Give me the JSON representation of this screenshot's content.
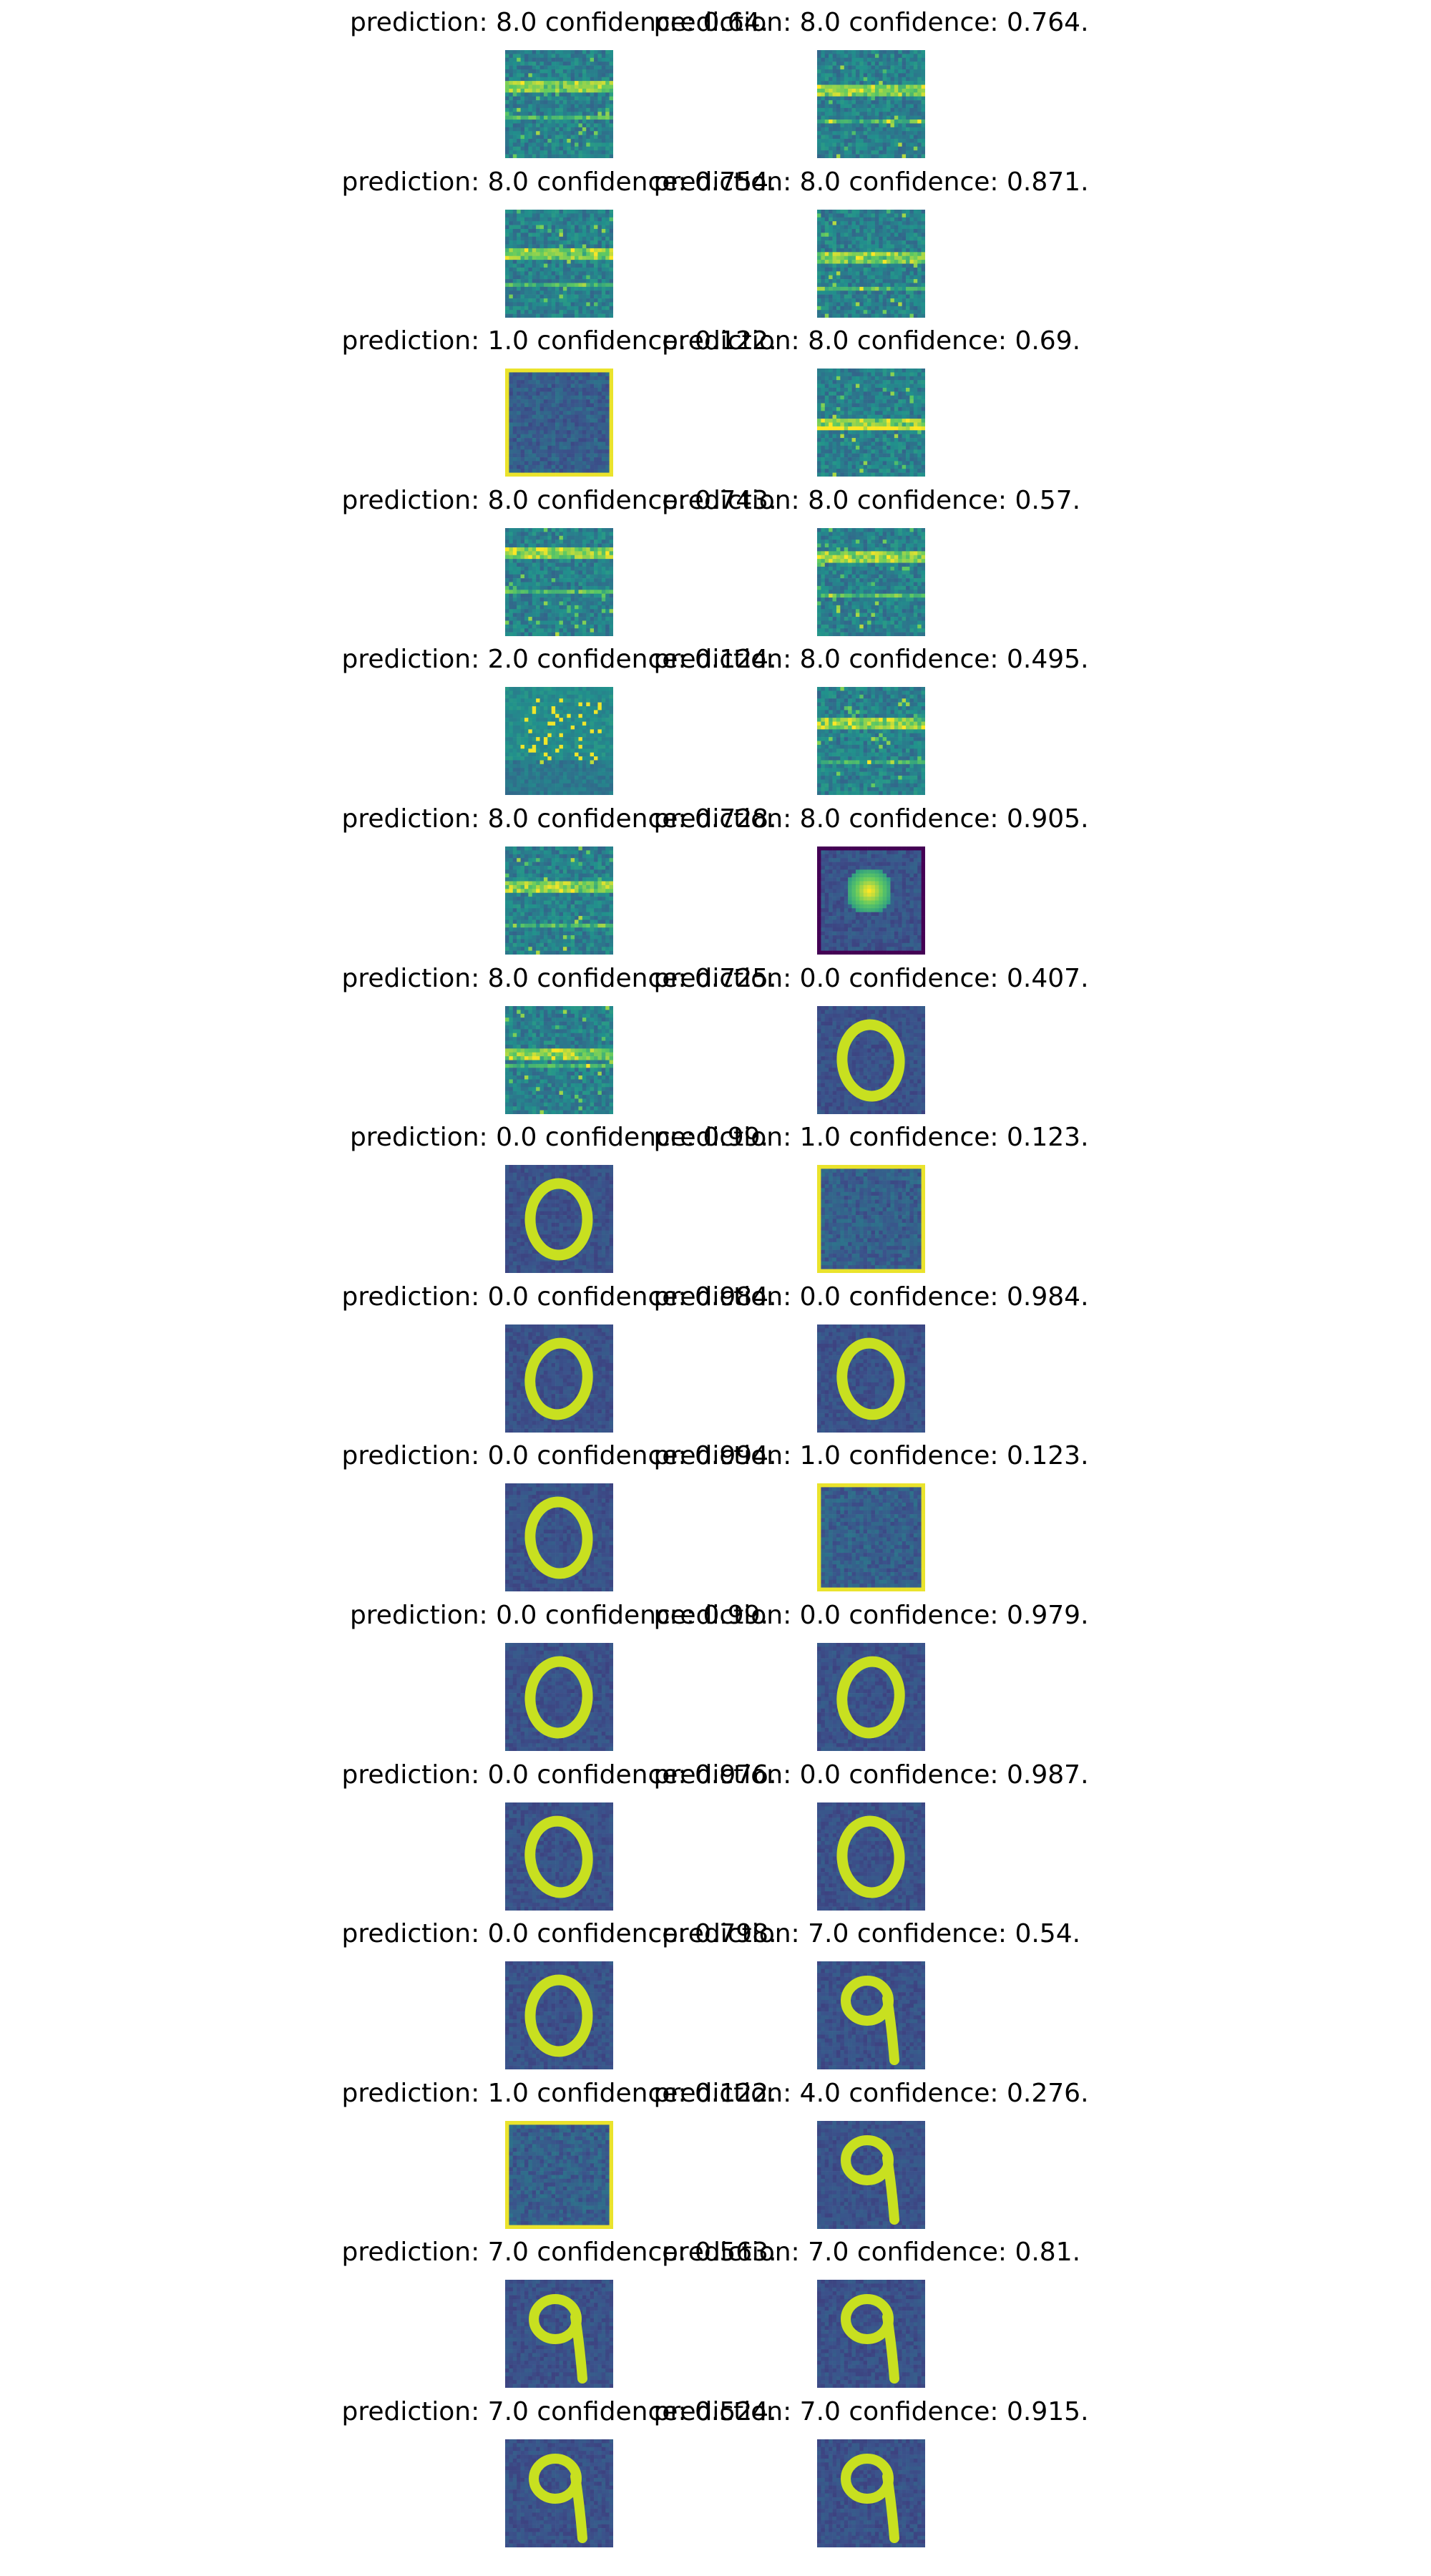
{
  "columns": 2,
  "colors": {
    "background": "#ffffff",
    "text": "#000000",
    "viridis_low": "#440154",
    "viridis_mid": "#31688e",
    "viridis_teal": "#21918c",
    "viridis_green": "#35b779",
    "viridis_high": "#fde725",
    "digit_stroke": "#c8e020"
  },
  "panels": [
    {
      "caption": "prediction: 8.0 confidence: 0.64.",
      "prediction": 8.0,
      "confidence": 0.64,
      "content": "texture"
    },
    {
      "caption": "prediction: 8.0 confidence: 0.764.",
      "prediction": 8.0,
      "confidence": 0.764,
      "content": "texture"
    },
    {
      "caption": "prediction: 8.0 confidence: 0.754.",
      "prediction": 8.0,
      "confidence": 0.754,
      "content": "texture"
    },
    {
      "caption": "prediction: 8.0 confidence: 0.871.",
      "prediction": 8.0,
      "confidence": 0.871,
      "content": "texture"
    },
    {
      "caption": "prediction: 1.0 confidence: 0.122.",
      "prediction": 1.0,
      "confidence": 0.122,
      "content": "bordered"
    },
    {
      "caption": "prediction: 8.0 confidence: 0.69.",
      "prediction": 8.0,
      "confidence": 0.69,
      "content": "texture"
    },
    {
      "caption": "prediction: 8.0 confidence: 0.743.",
      "prediction": 8.0,
      "confidence": 0.743,
      "content": "texture"
    },
    {
      "caption": "prediction: 8.0 confidence: 0.57.",
      "prediction": 8.0,
      "confidence": 0.57,
      "content": "texture"
    },
    {
      "caption": "prediction: 2.0 confidence: 0.124.",
      "prediction": 2.0,
      "confidence": 0.124,
      "content": "dots"
    },
    {
      "caption": "prediction: 8.0 confidence: 0.495.",
      "prediction": 8.0,
      "confidence": 0.495,
      "content": "texture"
    },
    {
      "caption": "prediction: 8.0 confidence: 0.728.",
      "prediction": 8.0,
      "confidence": 0.728,
      "content": "texture"
    },
    {
      "caption": "prediction: 8.0 confidence: 0.905.",
      "prediction": 8.0,
      "confidence": 0.905,
      "content": "blob"
    },
    {
      "caption": "prediction: 8.0 confidence: 0.725.",
      "prediction": 8.0,
      "confidence": 0.725,
      "content": "texture"
    },
    {
      "caption": "prediction: 0.0 confidence: 0.407.",
      "prediction": 0.0,
      "confidence": 0.407,
      "content": "digit-0"
    },
    {
      "caption": "prediction: 0.0 confidence: 0.99.",
      "prediction": 0.0,
      "confidence": 0.99,
      "content": "digit-0"
    },
    {
      "caption": "prediction: 1.0 confidence: 0.123.",
      "prediction": 1.0,
      "confidence": 0.123,
      "content": "bordered"
    },
    {
      "caption": "prediction: 0.0 confidence: 0.984.",
      "prediction": 0.0,
      "confidence": 0.984,
      "content": "digit-0"
    },
    {
      "caption": "prediction: 0.0 confidence: 0.984.",
      "prediction": 0.0,
      "confidence": 0.984,
      "content": "digit-0"
    },
    {
      "caption": "prediction: 0.0 confidence: 0.994.",
      "prediction": 0.0,
      "confidence": 0.994,
      "content": "digit-0"
    },
    {
      "caption": "prediction: 1.0 confidence: 0.123.",
      "prediction": 1.0,
      "confidence": 0.123,
      "content": "bordered"
    },
    {
      "caption": "prediction: 0.0 confidence: 0.99.",
      "prediction": 0.0,
      "confidence": 0.99,
      "content": "digit-0"
    },
    {
      "caption": "prediction: 0.0 confidence: 0.979.",
      "prediction": 0.0,
      "confidence": 0.979,
      "content": "digit-0"
    },
    {
      "caption": "prediction: 0.0 confidence: 0.976.",
      "prediction": 0.0,
      "confidence": 0.976,
      "content": "digit-0"
    },
    {
      "caption": "prediction: 0.0 confidence: 0.987.",
      "prediction": 0.0,
      "confidence": 0.987,
      "content": "digit-0"
    },
    {
      "caption": "prediction: 0.0 confidence: 0.798.",
      "prediction": 0.0,
      "confidence": 0.798,
      "content": "digit-0"
    },
    {
      "caption": "prediction: 7.0 confidence: 0.54.",
      "prediction": 7.0,
      "confidence": 0.54,
      "content": "digit-9"
    },
    {
      "caption": "prediction: 1.0 confidence: 0.122.",
      "prediction": 1.0,
      "confidence": 0.122,
      "content": "bordered"
    },
    {
      "caption": "prediction: 4.0 confidence: 0.276.",
      "prediction": 4.0,
      "confidence": 0.276,
      "content": "digit-9"
    },
    {
      "caption": "prediction: 7.0 confidence: 0.563.",
      "prediction": 7.0,
      "confidence": 0.563,
      "content": "digit-9"
    },
    {
      "caption": "prediction: 7.0 confidence: 0.81.",
      "prediction": 7.0,
      "confidence": 0.81,
      "content": "digit-9"
    },
    {
      "caption": "prediction: 7.0 confidence: 0.524.",
      "prediction": 7.0,
      "confidence": 0.524,
      "content": "digit-9"
    },
    {
      "caption": "prediction: 7.0 confidence: 0.915.",
      "prediction": 7.0,
      "confidence": 0.915,
      "content": "digit-9"
    }
  ]
}
